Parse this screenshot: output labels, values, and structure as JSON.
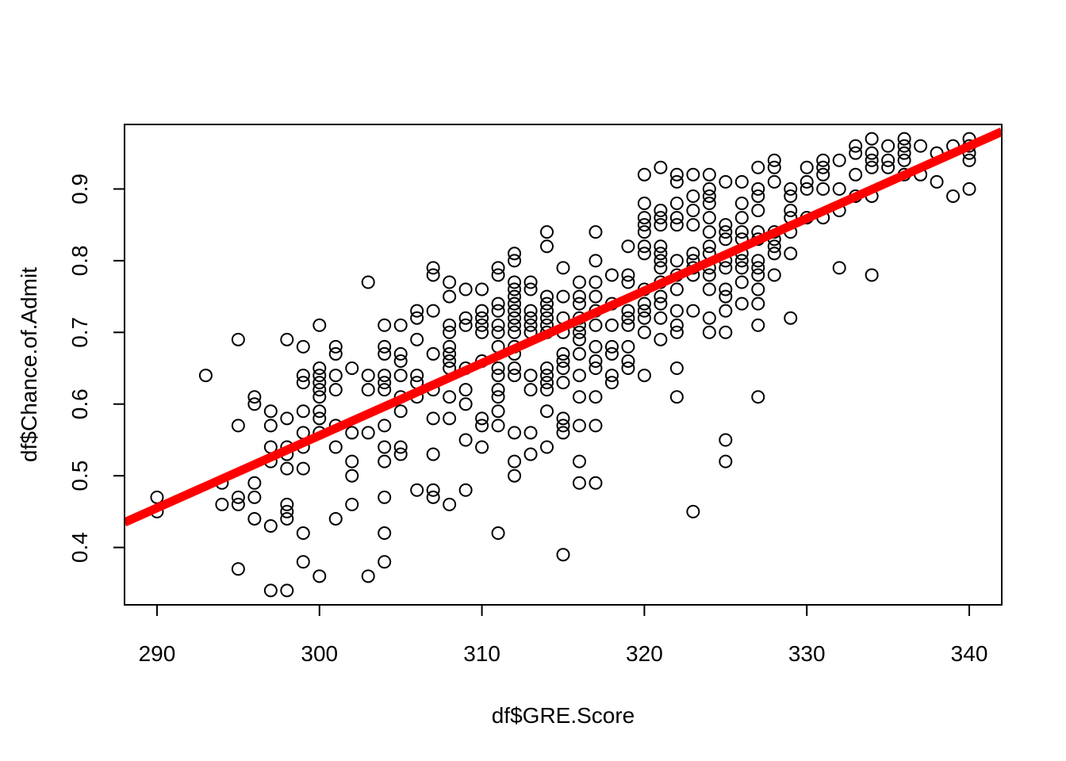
{
  "chart_data": {
    "type": "scatter",
    "xlabel": "df$GRE.Score",
    "ylabel": "df$Chance.of.Admit",
    "xlim": [
      288,
      342
    ],
    "ylim": [
      0.32,
      0.99
    ],
    "x_ticks": [
      290,
      300,
      310,
      320,
      330,
      340
    ],
    "y_ticks": [
      0.4,
      0.5,
      0.6,
      0.7,
      0.8,
      0.9
    ],
    "x_tick_labels": [
      "290",
      "300",
      "310",
      "320",
      "330",
      "340"
    ],
    "y_tick_labels": [
      "0.4",
      "0.5",
      "0.6",
      "0.7",
      "0.8",
      "0.9"
    ],
    "grid": false,
    "point_color": "#000000",
    "points": [
      [
        290,
        0.47
      ],
      [
        290,
        0.45
      ],
      [
        293,
        0.64
      ],
      [
        294,
        0.49
      ],
      [
        294,
        0.46
      ],
      [
        295,
        0.69
      ],
      [
        295,
        0.57
      ],
      [
        295,
        0.47
      ],
      [
        295,
        0.46
      ],
      [
        295,
        0.37
      ],
      [
        296,
        0.61
      ],
      [
        296,
        0.6
      ],
      [
        296,
        0.49
      ],
      [
        296,
        0.47
      ],
      [
        296,
        0.44
      ],
      [
        297,
        0.59
      ],
      [
        297,
        0.57
      ],
      [
        297,
        0.54
      ],
      [
        297,
        0.52
      ],
      [
        297,
        0.43
      ],
      [
        297,
        0.34
      ],
      [
        298,
        0.69
      ],
      [
        298,
        0.58
      ],
      [
        298,
        0.54
      ],
      [
        298,
        0.53
      ],
      [
        298,
        0.51
      ],
      [
        298,
        0.46
      ],
      [
        298,
        0.45
      ],
      [
        298,
        0.44
      ],
      [
        298,
        0.34
      ],
      [
        299,
        0.68
      ],
      [
        299,
        0.64
      ],
      [
        299,
        0.63
      ],
      [
        299,
        0.59
      ],
      [
        299,
        0.56
      ],
      [
        299,
        0.54
      ],
      [
        299,
        0.51
      ],
      [
        299,
        0.42
      ],
      [
        299,
        0.38
      ],
      [
        300,
        0.71
      ],
      [
        300,
        0.65
      ],
      [
        300,
        0.64
      ],
      [
        300,
        0.63
      ],
      [
        300,
        0.62
      ],
      [
        300,
        0.61
      ],
      [
        300,
        0.59
      ],
      [
        300,
        0.58
      ],
      [
        300,
        0.56
      ],
      [
        300,
        0.36
      ],
      [
        301,
        0.68
      ],
      [
        301,
        0.67
      ],
      [
        301,
        0.64
      ],
      [
        301,
        0.62
      ],
      [
        301,
        0.57
      ],
      [
        301,
        0.54
      ],
      [
        301,
        0.44
      ],
      [
        302,
        0.65
      ],
      [
        302,
        0.56
      ],
      [
        302,
        0.52
      ],
      [
        302,
        0.5
      ],
      [
        302,
        0.46
      ],
      [
        303,
        0.77
      ],
      [
        303,
        0.64
      ],
      [
        303,
        0.62
      ],
      [
        303,
        0.56
      ],
      [
        303,
        0.36
      ],
      [
        304,
        0.71
      ],
      [
        304,
        0.68
      ],
      [
        304,
        0.67
      ],
      [
        304,
        0.64
      ],
      [
        304,
        0.63
      ],
      [
        304,
        0.62
      ],
      [
        304,
        0.57
      ],
      [
        304,
        0.54
      ],
      [
        304,
        0.52
      ],
      [
        304,
        0.47
      ],
      [
        304,
        0.42
      ],
      [
        304,
        0.38
      ],
      [
        305,
        0.71
      ],
      [
        305,
        0.67
      ],
      [
        305,
        0.66
      ],
      [
        305,
        0.64
      ],
      [
        305,
        0.61
      ],
      [
        305,
        0.59
      ],
      [
        305,
        0.54
      ],
      [
        305,
        0.53
      ],
      [
        306,
        0.73
      ],
      [
        306,
        0.72
      ],
      [
        306,
        0.69
      ],
      [
        306,
        0.64
      ],
      [
        306,
        0.63
      ],
      [
        306,
        0.61
      ],
      [
        306,
        0.48
      ],
      [
        307,
        0.79
      ],
      [
        307,
        0.78
      ],
      [
        307,
        0.73
      ],
      [
        307,
        0.67
      ],
      [
        307,
        0.62
      ],
      [
        307,
        0.58
      ],
      [
        307,
        0.53
      ],
      [
        307,
        0.48
      ],
      [
        307,
        0.47
      ],
      [
        308,
        0.77
      ],
      [
        308,
        0.75
      ],
      [
        308,
        0.71
      ],
      [
        308,
        0.7
      ],
      [
        308,
        0.68
      ],
      [
        308,
        0.67
      ],
      [
        308,
        0.66
      ],
      [
        308,
        0.65
      ],
      [
        308,
        0.61
      ],
      [
        308,
        0.58
      ],
      [
        308,
        0.46
      ],
      [
        309,
        0.76
      ],
      [
        309,
        0.72
      ],
      [
        309,
        0.71
      ],
      [
        309,
        0.65
      ],
      [
        309,
        0.62
      ],
      [
        309,
        0.6
      ],
      [
        309,
        0.55
      ],
      [
        309,
        0.48
      ],
      [
        310,
        0.76
      ],
      [
        310,
        0.73
      ],
      [
        310,
        0.72
      ],
      [
        310,
        0.71
      ],
      [
        310,
        0.7
      ],
      [
        310,
        0.66
      ],
      [
        310,
        0.58
      ],
      [
        310,
        0.57
      ],
      [
        310,
        0.54
      ],
      [
        311,
        0.79
      ],
      [
        311,
        0.78
      ],
      [
        311,
        0.74
      ],
      [
        311,
        0.73
      ],
      [
        311,
        0.71
      ],
      [
        311,
        0.7
      ],
      [
        311,
        0.68
      ],
      [
        311,
        0.65
      ],
      [
        311,
        0.64
      ],
      [
        311,
        0.62
      ],
      [
        311,
        0.61
      ],
      [
        311,
        0.59
      ],
      [
        311,
        0.57
      ],
      [
        311,
        0.42
      ],
      [
        312,
        0.81
      ],
      [
        312,
        0.8
      ],
      [
        312,
        0.77
      ],
      [
        312,
        0.76
      ],
      [
        312,
        0.75
      ],
      [
        312,
        0.74
      ],
      [
        312,
        0.73
      ],
      [
        312,
        0.72
      ],
      [
        312,
        0.71
      ],
      [
        312,
        0.7
      ],
      [
        312,
        0.68
      ],
      [
        312,
        0.67
      ],
      [
        312,
        0.65
      ],
      [
        312,
        0.64
      ],
      [
        312,
        0.56
      ],
      [
        312,
        0.52
      ],
      [
        312,
        0.5
      ],
      [
        313,
        0.77
      ],
      [
        313,
        0.76
      ],
      [
        313,
        0.73
      ],
      [
        313,
        0.72
      ],
      [
        313,
        0.71
      ],
      [
        313,
        0.7
      ],
      [
        313,
        0.64
      ],
      [
        313,
        0.62
      ],
      [
        313,
        0.56
      ],
      [
        313,
        0.53
      ],
      [
        314,
        0.84
      ],
      [
        314,
        0.82
      ],
      [
        314,
        0.75
      ],
      [
        314,
        0.74
      ],
      [
        314,
        0.73
      ],
      [
        314,
        0.72
      ],
      [
        314,
        0.71
      ],
      [
        314,
        0.7
      ],
      [
        314,
        0.65
      ],
      [
        314,
        0.64
      ],
      [
        314,
        0.63
      ],
      [
        314,
        0.62
      ],
      [
        314,
        0.59
      ],
      [
        314,
        0.54
      ],
      [
        315,
        0.79
      ],
      [
        315,
        0.75
      ],
      [
        315,
        0.72
      ],
      [
        315,
        0.7
      ],
      [
        315,
        0.67
      ],
      [
        315,
        0.66
      ],
      [
        315,
        0.65
      ],
      [
        315,
        0.63
      ],
      [
        315,
        0.58
      ],
      [
        315,
        0.57
      ],
      [
        315,
        0.56
      ],
      [
        315,
        0.39
      ],
      [
        316,
        0.77
      ],
      [
        316,
        0.75
      ],
      [
        316,
        0.74
      ],
      [
        316,
        0.72
      ],
      [
        316,
        0.71
      ],
      [
        316,
        0.7
      ],
      [
        316,
        0.69
      ],
      [
        316,
        0.67
      ],
      [
        316,
        0.64
      ],
      [
        316,
        0.61
      ],
      [
        316,
        0.57
      ],
      [
        316,
        0.52
      ],
      [
        316,
        0.49
      ],
      [
        317,
        0.84
      ],
      [
        317,
        0.8
      ],
      [
        317,
        0.77
      ],
      [
        317,
        0.75
      ],
      [
        317,
        0.73
      ],
      [
        317,
        0.71
      ],
      [
        317,
        0.68
      ],
      [
        317,
        0.66
      ],
      [
        317,
        0.65
      ],
      [
        317,
        0.61
      ],
      [
        317,
        0.57
      ],
      [
        317,
        0.49
      ],
      [
        318,
        0.78
      ],
      [
        318,
        0.74
      ],
      [
        318,
        0.71
      ],
      [
        318,
        0.68
      ],
      [
        318,
        0.67
      ],
      [
        318,
        0.64
      ],
      [
        318,
        0.63
      ],
      [
        319,
        0.82
      ],
      [
        319,
        0.78
      ],
      [
        319,
        0.77
      ],
      [
        319,
        0.73
      ],
      [
        319,
        0.72
      ],
      [
        319,
        0.71
      ],
      [
        319,
        0.68
      ],
      [
        319,
        0.66
      ],
      [
        319,
        0.65
      ],
      [
        320,
        0.92
      ],
      [
        320,
        0.88
      ],
      [
        320,
        0.86
      ],
      [
        320,
        0.85
      ],
      [
        320,
        0.84
      ],
      [
        320,
        0.82
      ],
      [
        320,
        0.81
      ],
      [
        320,
        0.76
      ],
      [
        320,
        0.74
      ],
      [
        320,
        0.73
      ],
      [
        320,
        0.72
      ],
      [
        320,
        0.7
      ],
      [
        320,
        0.64
      ],
      [
        321,
        0.93
      ],
      [
        321,
        0.87
      ],
      [
        321,
        0.86
      ],
      [
        321,
        0.85
      ],
      [
        321,
        0.82
      ],
      [
        321,
        0.81
      ],
      [
        321,
        0.8
      ],
      [
        321,
        0.79
      ],
      [
        321,
        0.77
      ],
      [
        321,
        0.75
      ],
      [
        321,
        0.74
      ],
      [
        321,
        0.72
      ],
      [
        321,
        0.69
      ],
      [
        322,
        0.92
      ],
      [
        322,
        0.91
      ],
      [
        322,
        0.88
      ],
      [
        322,
        0.86
      ],
      [
        322,
        0.85
      ],
      [
        322,
        0.8
      ],
      [
        322,
        0.78
      ],
      [
        322,
        0.76
      ],
      [
        322,
        0.73
      ],
      [
        322,
        0.71
      ],
      [
        322,
        0.7
      ],
      [
        322,
        0.65
      ],
      [
        322,
        0.61
      ],
      [
        323,
        0.92
      ],
      [
        323,
        0.89
      ],
      [
        323,
        0.87
      ],
      [
        323,
        0.85
      ],
      [
        323,
        0.81
      ],
      [
        323,
        0.8
      ],
      [
        323,
        0.79
      ],
      [
        323,
        0.78
      ],
      [
        323,
        0.73
      ],
      [
        323,
        0.45
      ],
      [
        324,
        0.92
      ],
      [
        324,
        0.9
      ],
      [
        324,
        0.89
      ],
      [
        324,
        0.88
      ],
      [
        324,
        0.86
      ],
      [
        324,
        0.84
      ],
      [
        324,
        0.82
      ],
      [
        324,
        0.81
      ],
      [
        324,
        0.79
      ],
      [
        324,
        0.78
      ],
      [
        324,
        0.76
      ],
      [
        324,
        0.72
      ],
      [
        324,
        0.7
      ],
      [
        325,
        0.91
      ],
      [
        325,
        0.85
      ],
      [
        325,
        0.84
      ],
      [
        325,
        0.83
      ],
      [
        325,
        0.8
      ],
      [
        325,
        0.79
      ],
      [
        325,
        0.76
      ],
      [
        325,
        0.75
      ],
      [
        325,
        0.73
      ],
      [
        325,
        0.7
      ],
      [
        325,
        0.55
      ],
      [
        325,
        0.52
      ],
      [
        326,
        0.91
      ],
      [
        326,
        0.88
      ],
      [
        326,
        0.86
      ],
      [
        326,
        0.84
      ],
      [
        326,
        0.83
      ],
      [
        326,
        0.81
      ],
      [
        326,
        0.8
      ],
      [
        326,
        0.79
      ],
      [
        326,
        0.77
      ],
      [
        326,
        0.74
      ],
      [
        327,
        0.93
      ],
      [
        327,
        0.9
      ],
      [
        327,
        0.89
      ],
      [
        327,
        0.87
      ],
      [
        327,
        0.84
      ],
      [
        327,
        0.83
      ],
      [
        327,
        0.8
      ],
      [
        327,
        0.79
      ],
      [
        327,
        0.78
      ],
      [
        327,
        0.76
      ],
      [
        327,
        0.74
      ],
      [
        327,
        0.71
      ],
      [
        327,
        0.61
      ],
      [
        328,
        0.94
      ],
      [
        328,
        0.93
      ],
      [
        328,
        0.91
      ],
      [
        328,
        0.84
      ],
      [
        328,
        0.83
      ],
      [
        328,
        0.82
      ],
      [
        328,
        0.81
      ],
      [
        328,
        0.78
      ],
      [
        329,
        0.9
      ],
      [
        329,
        0.89
      ],
      [
        329,
        0.87
      ],
      [
        329,
        0.86
      ],
      [
        329,
        0.84
      ],
      [
        329,
        0.81
      ],
      [
        329,
        0.72
      ],
      [
        330,
        0.93
      ],
      [
        330,
        0.91
      ],
      [
        330,
        0.9
      ],
      [
        330,
        0.86
      ],
      [
        331,
        0.94
      ],
      [
        331,
        0.93
      ],
      [
        331,
        0.92
      ],
      [
        331,
        0.9
      ],
      [
        331,
        0.86
      ],
      [
        332,
        0.94
      ],
      [
        332,
        0.9
      ],
      [
        332,
        0.87
      ],
      [
        332,
        0.79
      ],
      [
        333,
        0.96
      ],
      [
        333,
        0.95
      ],
      [
        333,
        0.92
      ],
      [
        333,
        0.89
      ],
      [
        334,
        0.97
      ],
      [
        334,
        0.95
      ],
      [
        334,
        0.94
      ],
      [
        334,
        0.93
      ],
      [
        334,
        0.89
      ],
      [
        334,
        0.78
      ],
      [
        335,
        0.96
      ],
      [
        335,
        0.94
      ],
      [
        335,
        0.93
      ],
      [
        336,
        0.97
      ],
      [
        336,
        0.96
      ],
      [
        336,
        0.95
      ],
      [
        336,
        0.94
      ],
      [
        336,
        0.92
      ],
      [
        337,
        0.96
      ],
      [
        337,
        0.92
      ],
      [
        338,
        0.95
      ],
      [
        338,
        0.91
      ],
      [
        339,
        0.96
      ],
      [
        339,
        0.89
      ],
      [
        340,
        0.97
      ],
      [
        340,
        0.96
      ],
      [
        340,
        0.95
      ],
      [
        340,
        0.94
      ],
      [
        340,
        0.9
      ]
    ],
    "regression_line": {
      "color": "#ff0000",
      "x": [
        288,
        342
      ],
      "y": [
        0.435,
        0.98
      ]
    }
  }
}
